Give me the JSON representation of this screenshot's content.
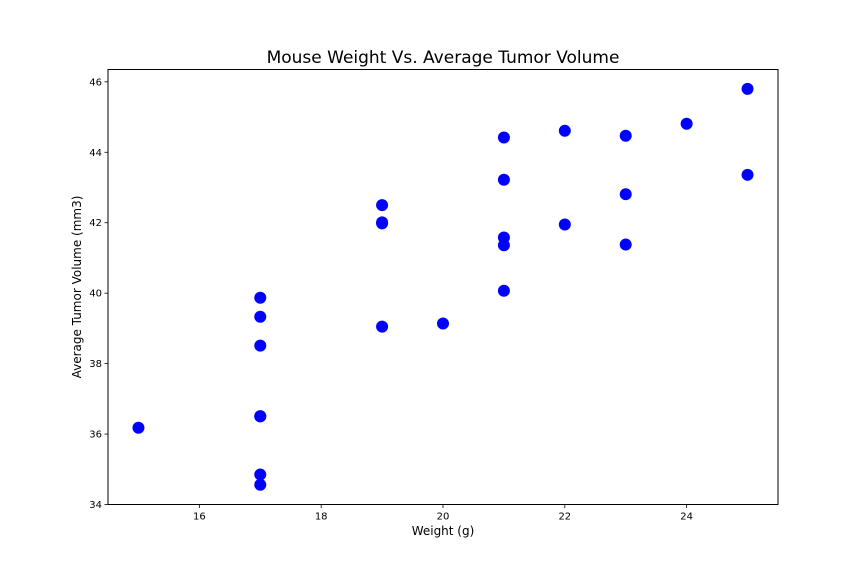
{
  "chart_data": {
    "type": "scatter",
    "title": "Mouse Weight Vs. Average Tumor Volume",
    "xlabel": "Weight (g)",
    "ylabel": "Average Tumor Volume (mm3)",
    "xlim": [
      14.5,
      25.5
    ],
    "ylim": [
      34,
      46.35
    ],
    "xticks": [
      16,
      18,
      20,
      22,
      24
    ],
    "yticks": [
      34,
      36,
      38,
      40,
      42,
      44,
      46
    ],
    "grid": false,
    "marker_color": "#0000ff",
    "points": [
      {
        "x": 15,
        "y": 36.18
      },
      {
        "x": 17,
        "y": 39.87
      },
      {
        "x": 17,
        "y": 39.33
      },
      {
        "x": 17,
        "y": 38.51
      },
      {
        "x": 17,
        "y": 36.51
      },
      {
        "x": 17,
        "y": 36.5
      },
      {
        "x": 17,
        "y": 34.85
      },
      {
        "x": 17,
        "y": 34.56
      },
      {
        "x": 19,
        "y": 42.5
      },
      {
        "x": 19,
        "y": 42.01
      },
      {
        "x": 19,
        "y": 41.98
      },
      {
        "x": 19,
        "y": 39.05
      },
      {
        "x": 20,
        "y": 39.14
      },
      {
        "x": 21,
        "y": 44.42
      },
      {
        "x": 21,
        "y": 43.22
      },
      {
        "x": 21,
        "y": 41.58
      },
      {
        "x": 21,
        "y": 41.36
      },
      {
        "x": 21,
        "y": 40.07
      },
      {
        "x": 22,
        "y": 44.61
      },
      {
        "x": 22,
        "y": 41.95
      },
      {
        "x": 23,
        "y": 44.47
      },
      {
        "x": 23,
        "y": 42.81
      },
      {
        "x": 23,
        "y": 41.38
      },
      {
        "x": 24,
        "y": 44.81
      },
      {
        "x": 25,
        "y": 45.8
      },
      {
        "x": 25,
        "y": 43.36
      }
    ]
  }
}
